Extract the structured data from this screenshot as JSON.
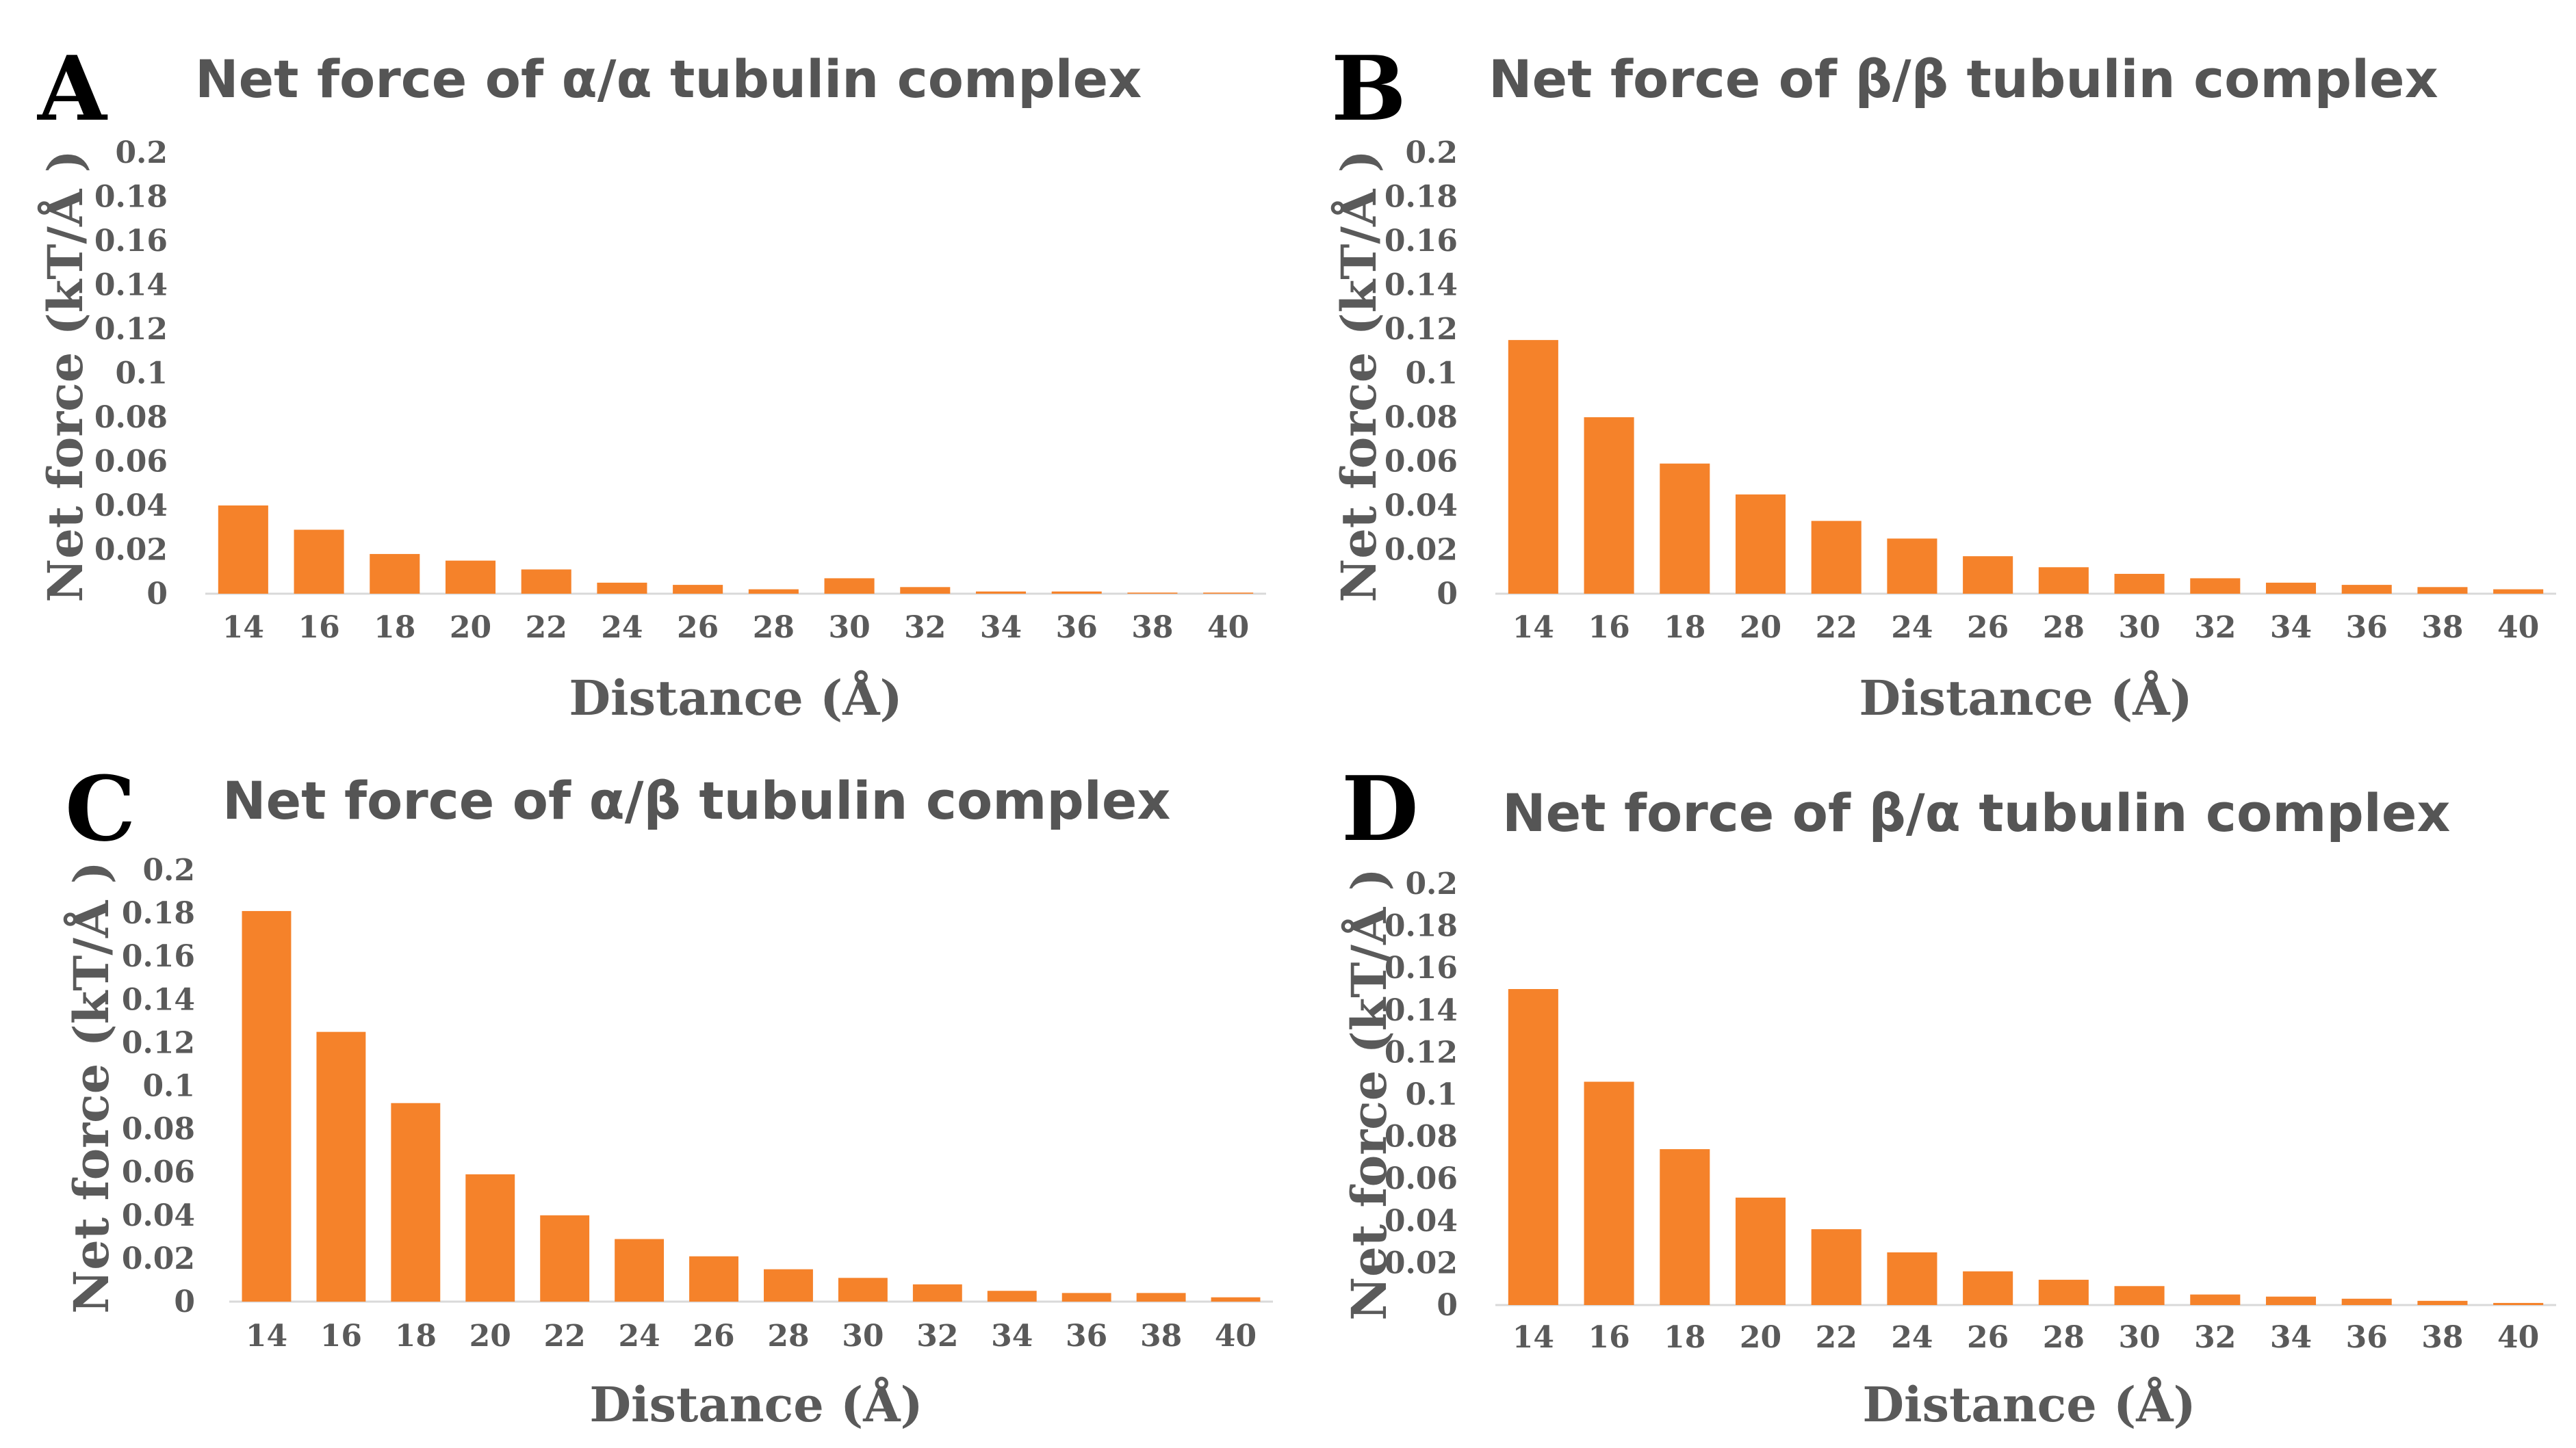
{
  "chart_data": [
    {
      "panel": "A",
      "type": "bar",
      "title": "Net force of α/α tubulin complex",
      "xlabel": "Distance (Å)",
      "ylabel": "Net force (kT/Å )",
      "ylim": [
        0,
        0.2
      ],
      "yticks": [
        "0",
        "0.02",
        "0.04",
        "0.06",
        "0.08",
        "0.1",
        "0.12",
        "0.14",
        "0.16",
        "0.18",
        "0.2"
      ],
      "categories": [
        "14",
        "16",
        "18",
        "20",
        "22",
        "24",
        "26",
        "28",
        "30",
        "32",
        "34",
        "36",
        "38",
        "40"
      ],
      "values": [
        0.04,
        0.029,
        0.018,
        0.015,
        0.011,
        0.005,
        0.004,
        0.002,
        0.007,
        0.003,
        0.001,
        0.001,
        0.0005,
        0.0005
      ],
      "color": "#F5822A",
      "grid": false
    },
    {
      "panel": "B",
      "type": "bar",
      "title": "Net force of β/β tubulin complex",
      "xlabel": "Distance (Å)",
      "ylabel": "Net force (kT/Å )",
      "ylim": [
        0,
        0.2
      ],
      "yticks": [
        "0",
        "0.02",
        "0.04",
        "0.06",
        "0.08",
        "0.1",
        "0.12",
        "0.14",
        "0.16",
        "0.18",
        "0.2"
      ],
      "categories": [
        "14",
        "16",
        "18",
        "20",
        "22",
        "24",
        "26",
        "28",
        "30",
        "32",
        "34",
        "36",
        "38",
        "40"
      ],
      "values": [
        0.115,
        0.08,
        0.059,
        0.045,
        0.033,
        0.025,
        0.017,
        0.012,
        0.009,
        0.007,
        0.005,
        0.004,
        0.003,
        0.002
      ],
      "color": "#F5822A",
      "grid": false
    },
    {
      "panel": "C",
      "type": "bar",
      "title": "Net force of α/β tubulin complex",
      "xlabel": "Distance (Å)",
      "ylabel": "Net force (kT/Å )",
      "ylim": [
        0,
        0.2
      ],
      "yticks": [
        "0",
        "0.02",
        "0.04",
        "0.06",
        "0.08",
        "0.1",
        "0.12",
        "0.14",
        "0.16",
        "0.18",
        "0.2"
      ],
      "categories": [
        "14",
        "16",
        "18",
        "20",
        "22",
        "24",
        "26",
        "28",
        "30",
        "32",
        "34",
        "36",
        "38",
        "40"
      ],
      "values": [
        0.181,
        0.125,
        0.092,
        0.059,
        0.04,
        0.029,
        0.021,
        0.015,
        0.011,
        0.008,
        0.005,
        0.004,
        0.004,
        0.002
      ],
      "color": "#F5822A",
      "grid": false
    },
    {
      "panel": "D",
      "type": "bar",
      "title": "Net force of β/α tubulin complex",
      "xlabel": "Distance (Å)",
      "ylabel": "Net force (kT/Å )",
      "ylim": [
        0,
        0.2
      ],
      "yticks": [
        "0",
        "0.02",
        "0.04",
        "0.06",
        "0.08",
        "0.1",
        "0.12",
        "0.14",
        "0.16",
        "0.18",
        "0.2"
      ],
      "categories": [
        "14",
        "16",
        "18",
        "20",
        "22",
        "24",
        "26",
        "28",
        "30",
        "32",
        "34",
        "36",
        "38",
        "40"
      ],
      "values": [
        0.15,
        0.106,
        0.074,
        0.051,
        0.036,
        0.025,
        0.016,
        0.012,
        0.009,
        0.005,
        0.004,
        0.003,
        0.002,
        0.001
      ],
      "color": "#F5822A",
      "grid": false
    }
  ]
}
